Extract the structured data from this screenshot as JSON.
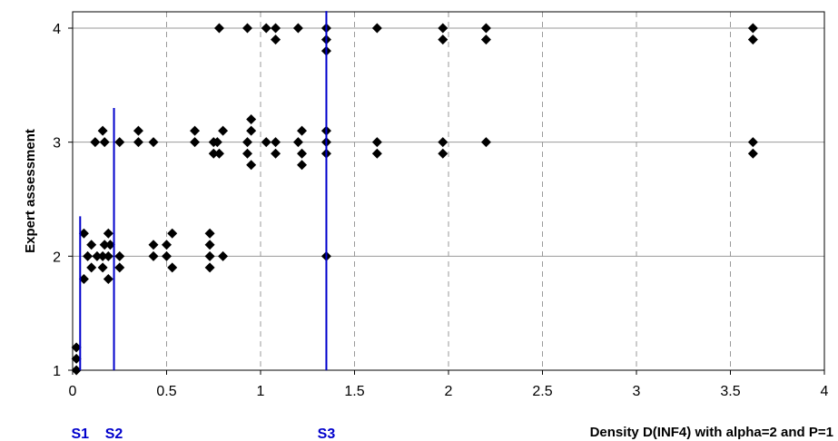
{
  "chart_data": {
    "type": "scatter",
    "title": "",
    "xlabel": "Density D(INF4) with alpha=2 and P=1",
    "ylabel": "Expert assessment",
    "xlim": [
      0,
      4
    ],
    "ylim": [
      1,
      4
    ],
    "x_ticks": [
      "0",
      "0.5",
      "1",
      "1.5",
      "2",
      "2.5",
      "3",
      "3.5",
      "4"
    ],
    "y_ticks": [
      "1",
      "2",
      "3",
      "4"
    ],
    "grid": {
      "vertical": "dashed",
      "horizontal": "solid"
    },
    "marker": {
      "shape": "diamond",
      "color": "#000000"
    },
    "points": [
      {
        "x": 0.02,
        "y": 1.2
      },
      {
        "x": 0.02,
        "y": 1.1
      },
      {
        "x": 0.02,
        "y": 1.0
      },
      {
        "x": 0.06,
        "y": 2.2
      },
      {
        "x": 0.06,
        "y": 1.8
      },
      {
        "x": 0.08,
        "y": 2.0
      },
      {
        "x": 0.1,
        "y": 2.1
      },
      {
        "x": 0.1,
        "y": 1.9
      },
      {
        "x": 0.12,
        "y": 3.0
      },
      {
        "x": 0.13,
        "y": 2.0
      },
      {
        "x": 0.16,
        "y": 3.1
      },
      {
        "x": 0.16,
        "y": 2.0
      },
      {
        "x": 0.16,
        "y": 1.9
      },
      {
        "x": 0.17,
        "y": 2.1
      },
      {
        "x": 0.17,
        "y": 3.0
      },
      {
        "x": 0.19,
        "y": 2.2
      },
      {
        "x": 0.19,
        "y": 2.0
      },
      {
        "x": 0.19,
        "y": 1.8
      },
      {
        "x": 0.2,
        "y": 2.1
      },
      {
        "x": 0.25,
        "y": 2.0
      },
      {
        "x": 0.25,
        "y": 1.9
      },
      {
        "x": 0.25,
        "y": 3.0
      },
      {
        "x": 0.35,
        "y": 3.1
      },
      {
        "x": 0.35,
        "y": 3.0
      },
      {
        "x": 0.43,
        "y": 2.1
      },
      {
        "x": 0.43,
        "y": 2.0
      },
      {
        "x": 0.43,
        "y": 3.0
      },
      {
        "x": 0.5,
        "y": 2.1
      },
      {
        "x": 0.5,
        "y": 2.0
      },
      {
        "x": 0.53,
        "y": 2.2
      },
      {
        "x": 0.53,
        "y": 1.9
      },
      {
        "x": 0.65,
        "y": 3.1
      },
      {
        "x": 0.65,
        "y": 3.0
      },
      {
        "x": 0.73,
        "y": 2.2
      },
      {
        "x": 0.73,
        "y": 2.1
      },
      {
        "x": 0.73,
        "y": 2.0
      },
      {
        "x": 0.73,
        "y": 1.9
      },
      {
        "x": 0.75,
        "y": 3.0
      },
      {
        "x": 0.75,
        "y": 2.9
      },
      {
        "x": 0.77,
        "y": 3.0
      },
      {
        "x": 0.78,
        "y": 2.9
      },
      {
        "x": 0.78,
        "y": 4.0
      },
      {
        "x": 0.8,
        "y": 3.1
      },
      {
        "x": 0.8,
        "y": 2.0
      },
      {
        "x": 0.93,
        "y": 4.0
      },
      {
        "x": 0.93,
        "y": 3.0
      },
      {
        "x": 0.93,
        "y": 2.9
      },
      {
        "x": 0.95,
        "y": 3.2
      },
      {
        "x": 0.95,
        "y": 3.1
      },
      {
        "x": 0.95,
        "y": 2.8
      },
      {
        "x": 1.03,
        "y": 4.0
      },
      {
        "x": 1.03,
        "y": 3.0
      },
      {
        "x": 1.08,
        "y": 4.0
      },
      {
        "x": 1.08,
        "y": 3.9
      },
      {
        "x": 1.08,
        "y": 3.0
      },
      {
        "x": 1.08,
        "y": 2.9
      },
      {
        "x": 1.2,
        "y": 4.0
      },
      {
        "x": 1.2,
        "y": 3.0
      },
      {
        "x": 1.22,
        "y": 3.1
      },
      {
        "x": 1.22,
        "y": 2.9
      },
      {
        "x": 1.22,
        "y": 2.8
      },
      {
        "x": 1.35,
        "y": 4.0
      },
      {
        "x": 1.35,
        "y": 3.9
      },
      {
        "x": 1.35,
        "y": 3.8
      },
      {
        "x": 1.35,
        "y": 3.1
      },
      {
        "x": 1.35,
        "y": 3.0
      },
      {
        "x": 1.35,
        "y": 2.9
      },
      {
        "x": 1.35,
        "y": 2.0
      },
      {
        "x": 1.62,
        "y": 4.0
      },
      {
        "x": 1.62,
        "y": 3.0
      },
      {
        "x": 1.62,
        "y": 2.9
      },
      {
        "x": 1.97,
        "y": 4.0
      },
      {
        "x": 1.97,
        "y": 3.9
      },
      {
        "x": 1.97,
        "y": 3.0
      },
      {
        "x": 1.97,
        "y": 2.9
      },
      {
        "x": 2.2,
        "y": 4.0
      },
      {
        "x": 2.2,
        "y": 3.9
      },
      {
        "x": 2.2,
        "y": 3.0
      },
      {
        "x": 3.62,
        "y": 4.0
      },
      {
        "x": 3.62,
        "y": 3.9
      },
      {
        "x": 3.62,
        "y": 3.0
      },
      {
        "x": 3.62,
        "y": 2.9
      }
    ],
    "threshold_color": "#0000cc",
    "thresholds": [
      {
        "label": "S1",
        "x": 0.04,
        "y_top": 2.35
      },
      {
        "label": "S2",
        "x": 0.22,
        "y_top": 3.3
      },
      {
        "label": "S3",
        "x": 1.35,
        "y_top": 4.15
      }
    ]
  }
}
